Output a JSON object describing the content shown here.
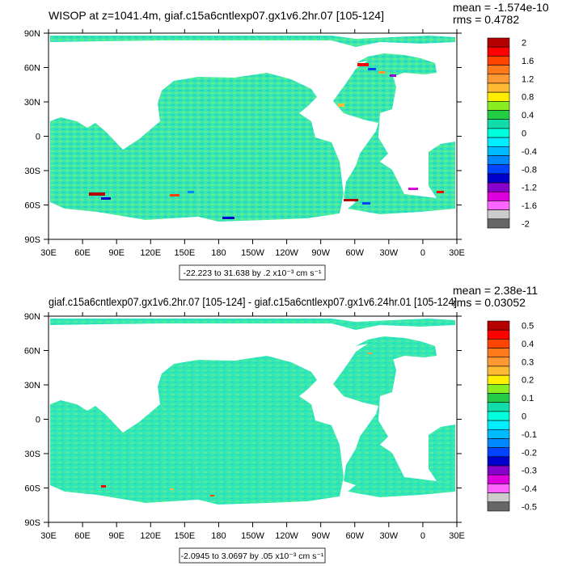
{
  "chart_data": [
    {
      "type": "heatmap",
      "title": "WISOP at z=1041.4m, giaf.c15a6cntlexp07.gx1v6.2hr.07 [105-124]",
      "stats": {
        "mean": "mean = -1.574e-10",
        "rms": "rms = 0.4782"
      },
      "y_ticks": [
        "90N",
        "60N",
        "30N",
        "0",
        "30S",
        "60S",
        "90S"
      ],
      "x_ticks": [
        "30E",
        "60E",
        "90E",
        "120E",
        "150E",
        "180",
        "150W",
        "120W",
        "90W",
        "60W",
        "30W",
        "0",
        "30E"
      ],
      "range_label": "-22.223 to 31.638 by .2 x10⁻³ cm s⁻¹",
      "colorbar_labels": [
        "2",
        "1.6",
        "1.2",
        "0.8",
        "0.4",
        "0",
        "-0.4",
        "-0.8",
        "-1.2",
        "-1.6",
        "-2"
      ],
      "colorbar_colors": [
        "#b40000",
        "#ff0000",
        "#ff4400",
        "#ff7a1a",
        "#ff9933",
        "#ffbb33",
        "#ffee00",
        "#88ee22",
        "#22cc44",
        "#11ddaa",
        "#00ffdd",
        "#00eeff",
        "#00bbff",
        "#0088ff",
        "#0044ff",
        "#0000cc",
        "#8800cc",
        "#dd00dd",
        "#ff66ff",
        "#cccccc",
        "#666666"
      ]
    },
    {
      "type": "heatmap",
      "title": "giaf.c15a6cntlexp07.gx1v6.2hr.07 [105-124] - giaf.c15a6cntlexp07.gx1v6.24hr.01 [105-124]",
      "stats": {
        "mean": "mean = 2.38e-11",
        "rms": "rms = 0.03052"
      },
      "y_ticks": [
        "90N",
        "60N",
        "30N",
        "0",
        "30S",
        "60S",
        "90S"
      ],
      "x_ticks": [
        "30E",
        "60E",
        "90E",
        "120E",
        "150E",
        "180",
        "150W",
        "120W",
        "90W",
        "60W",
        "30W",
        "0",
        "30E"
      ],
      "range_label": "-2.0945 to 3.0697 by .05 x10⁻³ cm s⁻¹",
      "colorbar_labels": [
        "0.5",
        "0.4",
        "0.3",
        "0.2",
        "0.1",
        "0",
        "-0.1",
        "-0.2",
        "-0.3",
        "-0.4",
        "-0.5"
      ],
      "colorbar_colors": [
        "#b40000",
        "#ff0000",
        "#ff4400",
        "#ff7a1a",
        "#ff9933",
        "#ffbb33",
        "#ffee00",
        "#88ee22",
        "#22cc44",
        "#11ddaa",
        "#00ffdd",
        "#00eeff",
        "#00bbff",
        "#0088ff",
        "#0044ff",
        "#0000cc",
        "#8800cc",
        "#dd00dd",
        "#ff66ff",
        "#cccccc",
        "#666666"
      ]
    }
  ]
}
